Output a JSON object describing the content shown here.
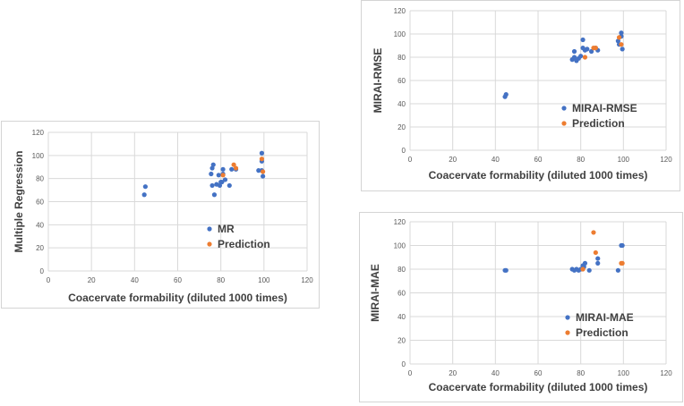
{
  "colors": {
    "series_blue": "#4472c4",
    "series_orange": "#ed7d31",
    "grid": "#d9d9d9",
    "text": "#404040"
  },
  "chart_data": [
    {
      "id": "chart-mr",
      "type": "scatter",
      "title": "",
      "xlabel": "Coacervate formability (diluted 1000 times)",
      "ylabel": "Multiple Regression",
      "xlim": [
        0,
        120
      ],
      "ylim": [
        0,
        120
      ],
      "xticks": [
        0,
        20,
        40,
        60,
        80,
        100,
        120
      ],
      "yticks": [
        0,
        20,
        40,
        60,
        80,
        100,
        120
      ],
      "grid": true,
      "legend_position": "bottom-center",
      "series": [
        {
          "name": "MR",
          "color": "#4472c4",
          "points": [
            [
              44.5,
              66
            ],
            [
              45,
              73
            ],
            [
              75.5,
              84
            ],
            [
              76,
              89
            ],
            [
              76.5,
              92
            ],
            [
              76,
              74
            ],
            [
              77,
              66
            ],
            [
              78,
              75
            ],
            [
              79,
              83
            ],
            [
              79.5,
              74
            ],
            [
              80,
              77
            ],
            [
              80.5,
              77
            ],
            [
              81,
              88
            ],
            [
              81,
              84
            ],
            [
              82,
              79
            ],
            [
              84,
              74
            ],
            [
              85,
              88
            ],
            [
              87,
              88
            ],
            [
              97.5,
              87
            ],
            [
              99,
              102
            ],
            [
              99,
              95
            ],
            [
              99,
              87
            ],
            [
              99.5,
              82
            ]
          ]
        },
        {
          "name": "Prediction",
          "color": "#ed7d31",
          "points": [
            [
              81,
              83
            ],
            [
              86,
              92
            ],
            [
              87,
              89
            ],
            [
              99,
              97
            ],
            [
              99.5,
              86
            ]
          ]
        }
      ]
    },
    {
      "id": "chart-rmse",
      "type": "scatter",
      "title": "",
      "xlabel": "Coacervate formability (diluted 1000 times)",
      "ylabel": "MIRAI-RMSE",
      "xlim": [
        0,
        120
      ],
      "ylim": [
        0,
        120
      ],
      "xticks": [
        0,
        20,
        40,
        60,
        80,
        100,
        120
      ],
      "yticks": [
        0,
        20,
        40,
        60,
        80,
        100,
        120
      ],
      "grid": true,
      "legend_position": "bottom-center",
      "series": [
        {
          "name": "MIRAI-RMSE",
          "color": "#4472c4",
          "points": [
            [
              44.5,
              46
            ],
            [
              45,
              48
            ],
            [
              76,
              78
            ],
            [
              77,
              80
            ],
            [
              77,
              85
            ],
            [
              78,
              77
            ],
            [
              79,
              79
            ],
            [
              80,
              81
            ],
            [
              81,
              95
            ],
            [
              81,
              88
            ],
            [
              82,
              86
            ],
            [
              83,
              87
            ],
            [
              85,
              85
            ],
            [
              87,
              88
            ],
            [
              88,
              86
            ],
            [
              97.5,
              94
            ],
            [
              98,
              91
            ],
            [
              99,
              101
            ],
            [
              99,
              98
            ],
            [
              99.5,
              87
            ]
          ]
        },
        {
          "name": "Prediction",
          "color": "#ed7d31",
          "points": [
            [
              82,
              80
            ],
            [
              86,
              88
            ],
            [
              87,
              88
            ],
            [
              98,
              97
            ],
            [
              99,
              91
            ]
          ]
        }
      ]
    },
    {
      "id": "chart-mae",
      "type": "scatter",
      "title": "",
      "xlabel": "Coacervate formability (diluted 1000 times)",
      "ylabel": "MIRAI-MAE",
      "xlim": [
        0,
        120
      ],
      "ylim": [
        0,
        120
      ],
      "xticks": [
        0,
        20,
        40,
        60,
        80,
        100,
        120
      ],
      "yticks": [
        0,
        20,
        40,
        60,
        80,
        100,
        120
      ],
      "grid": true,
      "legend_position": "bottom-center",
      "series": [
        {
          "name": "MIRAI-MAE",
          "color": "#4472c4",
          "points": [
            [
              44.5,
              79
            ],
            [
              45,
              79
            ],
            [
              76,
              80
            ],
            [
              77,
              79
            ],
            [
              78,
              80
            ],
            [
              79,
              79
            ],
            [
              80,
              80
            ],
            [
              81,
              83
            ],
            [
              81.5,
              82
            ],
            [
              82,
              85
            ],
            [
              84,
              79
            ],
            [
              88,
              85
            ],
            [
              88,
              89
            ],
            [
              97.5,
              79
            ],
            [
              99,
              100
            ],
            [
              99.5,
              100
            ]
          ]
        },
        {
          "name": "Prediction",
          "color": "#ed7d31",
          "points": [
            [
              81,
              80
            ],
            [
              86,
              111
            ],
            [
              87,
              94
            ],
            [
              99,
              85
            ],
            [
              99.5,
              85
            ]
          ]
        }
      ]
    }
  ]
}
